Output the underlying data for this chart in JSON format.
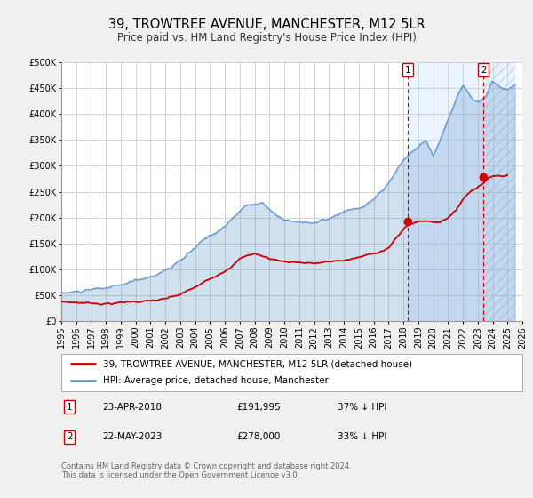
{
  "title": "39, TROWTREE AVENUE, MANCHESTER, M12 5LR",
  "subtitle": "Price paid vs. HM Land Registry's House Price Index (HPI)",
  "ylim": [
    0,
    500000
  ],
  "xlim": [
    1995,
    2026
  ],
  "yticks": [
    0,
    50000,
    100000,
    150000,
    200000,
    250000,
    300000,
    350000,
    400000,
    450000,
    500000
  ],
  "ytick_labels": [
    "£0",
    "£50K",
    "£100K",
    "£150K",
    "£200K",
    "£250K",
    "£300K",
    "£350K",
    "£400K",
    "£450K",
    "£500K"
  ],
  "xticks": [
    1995,
    1996,
    1997,
    1998,
    1999,
    2000,
    2001,
    2002,
    2003,
    2004,
    2005,
    2006,
    2007,
    2008,
    2009,
    2010,
    2011,
    2012,
    2013,
    2014,
    2015,
    2016,
    2017,
    2018,
    2019,
    2020,
    2021,
    2022,
    2023,
    2024,
    2025,
    2026
  ],
  "background_color": "#f0f0f0",
  "plot_bg_color": "#ffffff",
  "grid_color": "#cccccc",
  "hpi_color": "#6699cc",
  "hpi_fill_alpha": 0.3,
  "property_color": "#cc0000",
  "marker1_date": 2018.3,
  "marker1_value": 191995,
  "marker1_label": "1",
  "marker2_date": 2023.38,
  "marker2_value": 278000,
  "marker2_label": "2",
  "vline_color": "#cc0000",
  "shaded_start": 2018.3,
  "shaded_end": 2025.5,
  "legend_label_property": "39, TROWTREE AVENUE, MANCHESTER, M12 5LR (detached house)",
  "legend_label_hpi": "HPI: Average price, detached house, Manchester",
  "annotation1_date": "23-APR-2018",
  "annotation1_price": "£191,995",
  "annotation1_hpi": "37% ↓ HPI",
  "annotation2_date": "22-MAY-2023",
  "annotation2_price": "£278,000",
  "annotation2_hpi": "33% ↓ HPI",
  "footer": "Contains HM Land Registry data © Crown copyright and database right 2024.\nThis data is licensed under the Open Government Licence v3.0.",
  "title_fontsize": 10.5,
  "subtitle_fontsize": 8.5,
  "tick_fontsize": 7,
  "legend_fontsize": 7.5,
  "annotation_fontsize": 7.5,
  "footer_fontsize": 6
}
